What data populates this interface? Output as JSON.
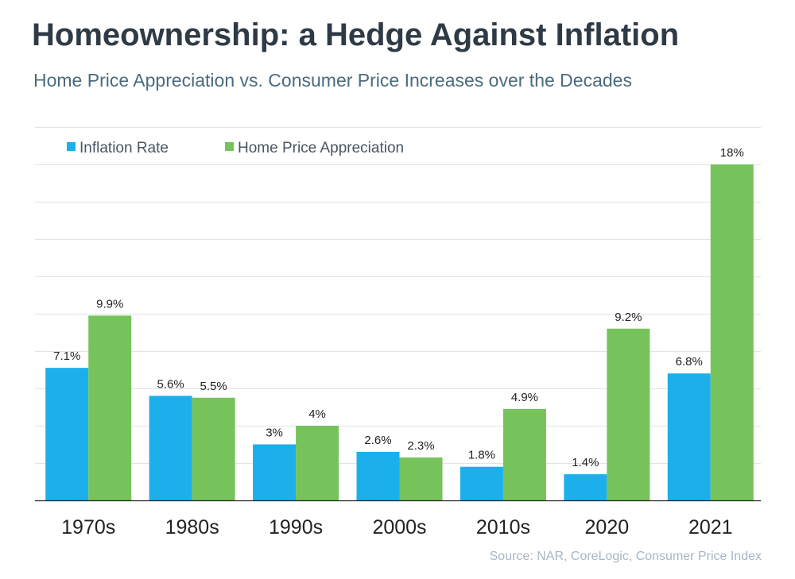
{
  "header": {
    "title": "Homeownership: a Hedge Against Inflation",
    "subtitle": "Home Price Appreciation vs. Consumer Price Increases over the Decades"
  },
  "footer": {
    "source": "Source: NAR, CoreLogic, Consumer Price Index"
  },
  "colors": {
    "inflation": "#1bb0ec",
    "home_price": "#77c35b",
    "gridline": "#e3e3e3",
    "axis": "#222222"
  },
  "chart_data": {
    "type": "bar",
    "title": "Homeownership: a Hedge Against Inflation",
    "subtitle": "Home Price Appreciation vs. Consumer Price Increases over the Decades",
    "xlabel": "",
    "ylabel": "",
    "categories": [
      "1970s",
      "1980s",
      "1990s",
      "2000s",
      "2010s",
      "2020",
      "2021"
    ],
    "series": [
      {
        "name": "Inflation Rate",
        "color": "#1bb0ec",
        "values": [
          7.1,
          5.6,
          3,
          2.6,
          1.8,
          1.4,
          6.8
        ],
        "labels": [
          "7.1%",
          "5.6%",
          "3%",
          "2.6%",
          "1.8%",
          "1.4%",
          "6.8%"
        ]
      },
      {
        "name": "Home Price Appreciation",
        "color": "#77c35b",
        "values": [
          9.9,
          5.5,
          4,
          2.3,
          4.9,
          9.2,
          18
        ],
        "labels": [
          "9.9%",
          "5.5%",
          "4%",
          "2.3%",
          "4.9%",
          "9.2%",
          "18%"
        ]
      }
    ],
    "ylim": [
      0,
      20
    ],
    "grid": true,
    "y_tick_labels_shown": false,
    "legend": "top-left"
  }
}
